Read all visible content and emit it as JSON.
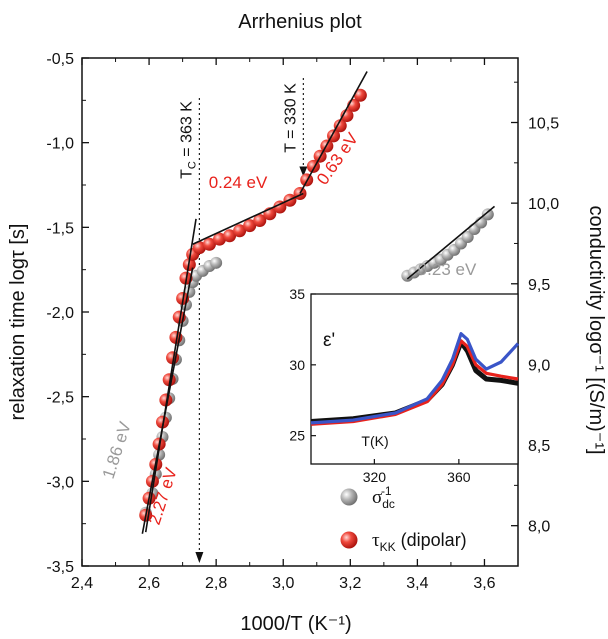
{
  "chart_data": {
    "type": "scatter",
    "title": "Arrhenius plot",
    "xlabel": "1000/T (K⁻¹)",
    "ylabel_left": "relaxation time logτ [s]",
    "ylabel_right": "conductivity logσ⁻¹ [(S/m)⁻¹]",
    "xlim": [
      2.4,
      3.7
    ],
    "ylim_left": [
      -3.5,
      -0.5
    ],
    "ylim_right": [
      7.75,
      10.9
    ],
    "x_ticks": [
      "2,4",
      "2,6",
      "2,8",
      "3,0",
      "3,2",
      "3,4",
      "3,6"
    ],
    "x_tick_values": [
      2.4,
      2.6,
      2.8,
      3.0,
      3.2,
      3.4,
      3.6
    ],
    "y_left_ticks": [
      "-0,5",
      "-1,0",
      "-1,5",
      "-2,0",
      "-2,5",
      "-3,0",
      "-3,5"
    ],
    "y_left_tick_values": [
      -0.5,
      -1.0,
      -1.5,
      -2.0,
      -2.5,
      -3.0,
      -3.5
    ],
    "y_right_ticks": [
      "8,0",
      "8,5",
      "9,0",
      "9,5",
      "10,0",
      "10,5"
    ],
    "y_right_tick_values": [
      8.0,
      8.5,
      9.0,
      9.5,
      10.0,
      10.5
    ],
    "series": [
      {
        "name": "σdc⁻¹",
        "axis": "right",
        "color": "#9a9a9a",
        "points": [
          [
            2.59,
            8.08
          ],
          [
            2.61,
            8.2
          ],
          [
            2.62,
            8.32
          ],
          [
            2.63,
            8.44
          ],
          [
            2.64,
            8.55
          ],
          [
            2.65,
            8.67
          ],
          [
            2.66,
            8.79
          ],
          [
            2.67,
            8.91
          ],
          [
            2.68,
            9.03
          ],
          [
            2.69,
            9.15
          ],
          [
            2.7,
            9.27
          ],
          [
            2.71,
            9.37
          ],
          [
            2.72,
            9.45
          ],
          [
            2.73,
            9.51
          ],
          [
            2.74,
            9.55
          ],
          [
            2.76,
            9.58
          ],
          [
            2.78,
            9.61
          ],
          [
            2.8,
            9.63
          ],
          [
            3.37,
            9.55
          ],
          [
            3.39,
            9.57
          ],
          [
            3.41,
            9.59
          ],
          [
            3.43,
            9.61
          ],
          [
            3.45,
            9.63
          ],
          [
            3.47,
            9.65
          ],
          [
            3.49,
            9.68
          ],
          [
            3.51,
            9.71
          ],
          [
            3.53,
            9.75
          ],
          [
            3.55,
            9.79
          ],
          [
            3.57,
            9.84
          ],
          [
            3.59,
            9.88
          ],
          [
            3.61,
            9.93
          ]
        ]
      },
      {
        "name": "τKK (dipolar)",
        "axis": "left",
        "color": "#e8221c",
        "points": [
          [
            2.59,
            -3.2
          ],
          [
            2.6,
            -3.1
          ],
          [
            2.61,
            -3.0
          ],
          [
            2.62,
            -2.9
          ],
          [
            2.63,
            -2.78
          ],
          [
            2.64,
            -2.65
          ],
          [
            2.65,
            -2.52
          ],
          [
            2.66,
            -2.4
          ],
          [
            2.67,
            -2.27
          ],
          [
            2.68,
            -2.15
          ],
          [
            2.69,
            -2.03
          ],
          [
            2.7,
            -1.92
          ],
          [
            2.71,
            -1.8
          ],
          [
            2.72,
            -1.72
          ],
          [
            2.73,
            -1.66
          ],
          [
            2.75,
            -1.62
          ],
          [
            2.78,
            -1.6
          ],
          [
            2.81,
            -1.57
          ],
          [
            2.84,
            -1.55
          ],
          [
            2.87,
            -1.52
          ],
          [
            2.9,
            -1.49
          ],
          [
            2.93,
            -1.46
          ],
          [
            2.96,
            -1.42
          ],
          [
            2.99,
            -1.38
          ],
          [
            3.02,
            -1.34
          ],
          [
            3.05,
            -1.3
          ],
          [
            3.07,
            -1.22
          ],
          [
            3.09,
            -1.14
          ],
          [
            3.11,
            -1.08
          ],
          [
            3.13,
            -1.02
          ],
          [
            3.15,
            -0.96
          ],
          [
            3.17,
            -0.9
          ],
          [
            3.19,
            -0.84
          ],
          [
            3.21,
            -0.78
          ],
          [
            3.23,
            -0.72
          ]
        ]
      }
    ],
    "fit_lines": [
      {
        "label": "1.86 eV",
        "color": "#9a9a9a",
        "axis": "right",
        "from": [
          2.58,
          7.95
        ],
        "to": [
          2.73,
          9.6
        ]
      },
      {
        "label": "2.27 eV",
        "color": "#e8221c",
        "axis": "left",
        "from": [
          2.59,
          -3.3
        ],
        "to": [
          2.74,
          -1.45
        ]
      },
      {
        "label": "0.24 eV",
        "color": "#e8221c",
        "axis": "left",
        "from": [
          2.73,
          -1.6
        ],
        "to": [
          3.06,
          -1.3
        ]
      },
      {
        "label": "0.63 eV",
        "color": "#e8221c",
        "axis": "left",
        "from": [
          3.05,
          -1.3
        ],
        "to": [
          3.25,
          -0.58
        ]
      },
      {
        "label": "0.23 eV",
        "color": "#9a9a9a",
        "axis": "right",
        "from": [
          3.37,
          9.53
        ],
        "to": [
          3.63,
          9.98
        ]
      }
    ],
    "markers": [
      {
        "label": "T",
        "sub": "C",
        "text_rest": " = 363 K",
        "x": 2.75
      },
      {
        "label": "T = 330 K",
        "x": 3.06
      }
    ],
    "inset": {
      "ylabel": "ε'",
      "xlabel": "T(K)",
      "x_ticks": [
        "320",
        "360"
      ],
      "x_tick_values": [
        320,
        360
      ],
      "xlim": [
        290,
        388
      ],
      "y_ticks": [
        "25",
        "30",
        "35"
      ],
      "y_tick_values": [
        25,
        30,
        35
      ],
      "ylim": [
        23,
        35
      ],
      "curves": [
        {
          "color": "#111111",
          "points": [
            [
              290,
              26.0
            ],
            [
              310,
              26.2
            ],
            [
              330,
              26.6
            ],
            [
              345,
              27.5
            ],
            [
              352,
              28.6
            ],
            [
              357,
              30.0
            ],
            [
              361,
              31.6
            ],
            [
              364,
              31.0
            ],
            [
              368,
              29.6
            ],
            [
              373,
              29.0
            ],
            [
              380,
              28.9
            ],
            [
              388,
              28.7
            ]
          ]
        },
        {
          "color": "#e8221c",
          "points": [
            [
              290,
              25.8
            ],
            [
              310,
              26.0
            ],
            [
              330,
              26.5
            ],
            [
              345,
              27.4
            ],
            [
              352,
              28.6
            ],
            [
              357,
              30.0
            ],
            [
              361,
              31.7
            ],
            [
              364,
              31.3
            ],
            [
              368,
              30.0
            ],
            [
              373,
              29.4
            ],
            [
              380,
              29.2
            ],
            [
              388,
              29.0
            ]
          ]
        },
        {
          "color": "#3a55c8",
          "points": [
            [
              290,
              25.9
            ],
            [
              310,
              26.1
            ],
            [
              330,
              26.6
            ],
            [
              345,
              27.6
            ],
            [
              352,
              28.9
            ],
            [
              357,
              30.4
            ],
            [
              361,
              32.2
            ],
            [
              364,
              31.8
            ],
            [
              368,
              30.4
            ],
            [
              373,
              29.7
            ],
            [
              380,
              30.2
            ],
            [
              388,
              31.5
            ]
          ]
        }
      ]
    },
    "legend": [
      {
        "symbol": "σ",
        "sub": "dc",
        "sup": "-1",
        "color": "#9a9a9a"
      },
      {
        "symbol": "τ",
        "sub": "KK",
        "rest": " (dipolar)",
        "color": "#e8221c"
      }
    ]
  }
}
